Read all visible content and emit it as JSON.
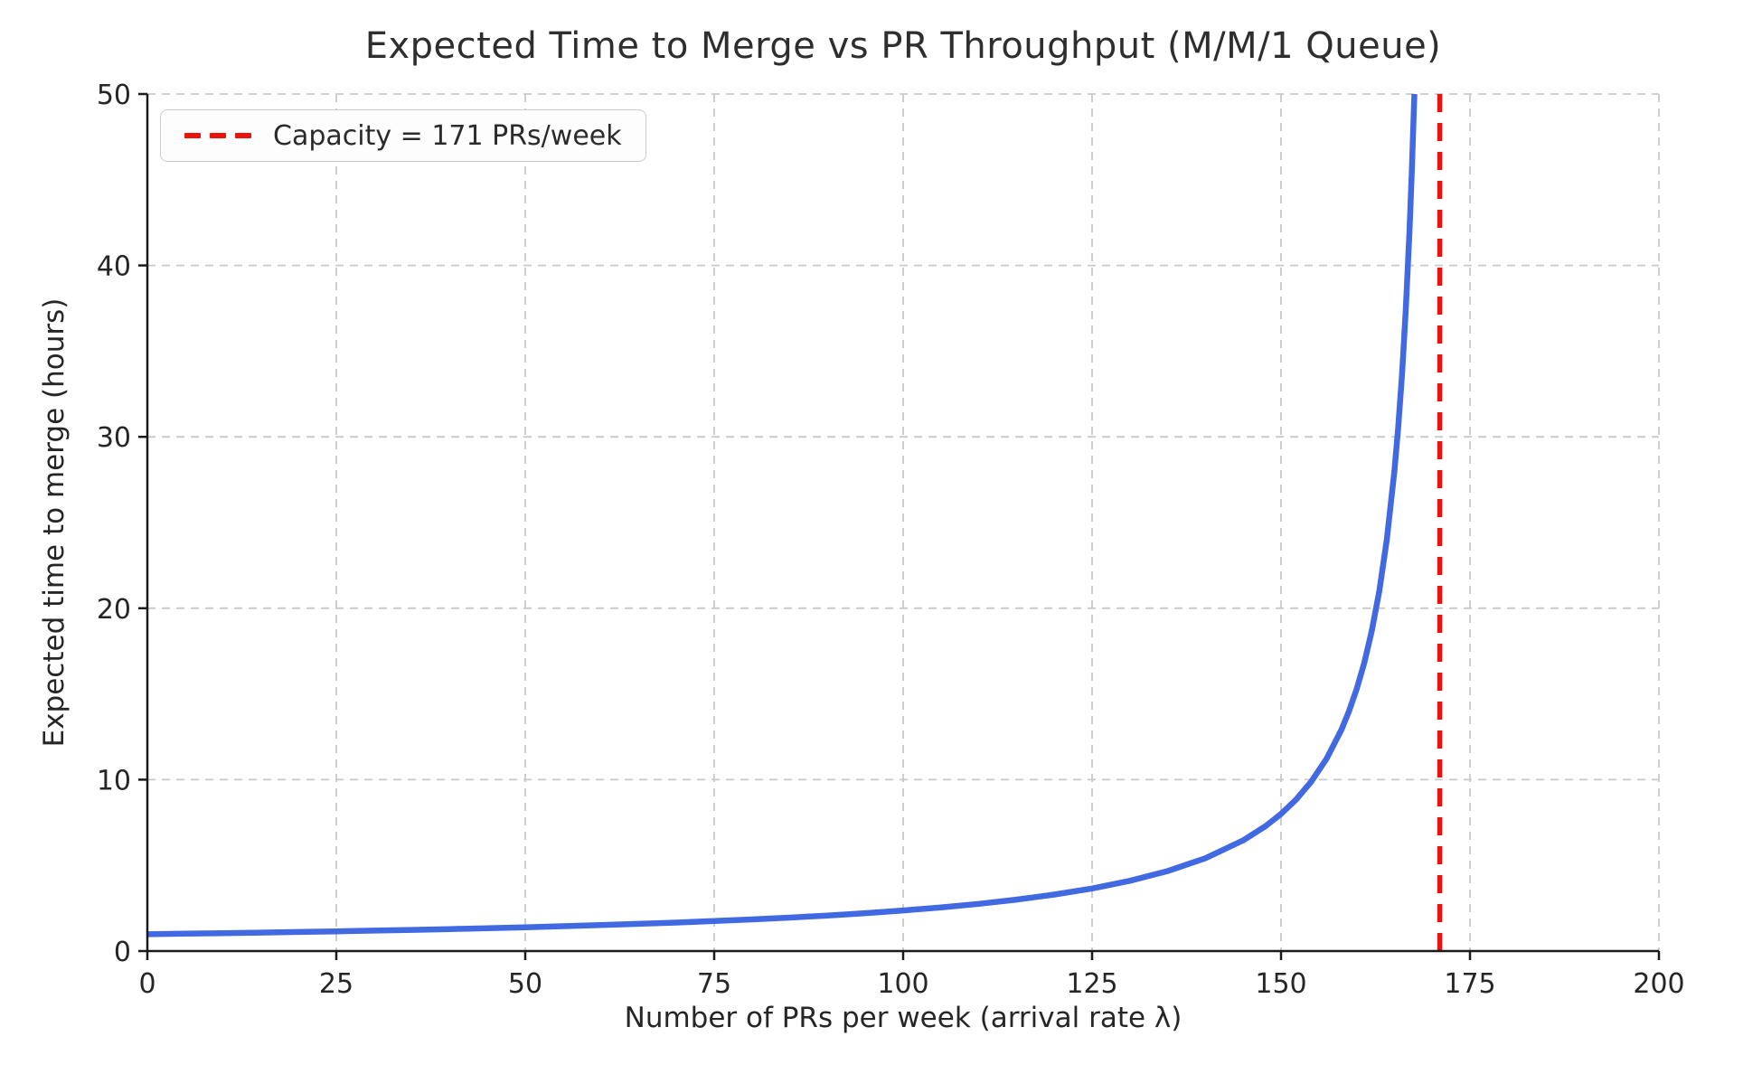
{
  "chart_data": {
    "type": "line",
    "title": "Expected Time to Merge vs PR Throughput (M/M/1 Queue)",
    "xlabel": "Number of PRs per week (arrival rate λ)",
    "ylabel": "Expected time to merge (hours)",
    "xlim": [
      0,
      200
    ],
    "ylim": [
      0,
      50
    ],
    "x_ticks": [
      0,
      25,
      50,
      75,
      100,
      125,
      150,
      175,
      200
    ],
    "y_ticks": [
      0,
      10,
      20,
      30,
      40,
      50
    ],
    "grid": true,
    "grid_style": "dashed",
    "legend": {
      "position": "upper left",
      "entries": [
        {
          "label": "Capacity = 171 PRs/week",
          "color": "#e8130d",
          "style": "dashed"
        }
      ]
    },
    "vline": {
      "x": 171,
      "color": "#e8130d",
      "style": "dashed",
      "width": 5.5
    },
    "series": [
      {
        "name": "expected-time-to-merge",
        "color": "#4169e1",
        "width": 6.5,
        "points": [
          [
            0,
            0.982
          ],
          [
            5,
            1.012
          ],
          [
            10,
            1.043
          ],
          [
            15,
            1.077
          ],
          [
            20,
            1.113
          ],
          [
            25,
            1.151
          ],
          [
            30,
            1.191
          ],
          [
            35,
            1.235
          ],
          [
            40,
            1.282
          ],
          [
            45,
            1.333
          ],
          [
            50,
            1.388
          ],
          [
            55,
            1.448
          ],
          [
            60,
            1.514
          ],
          [
            65,
            1.585
          ],
          [
            70,
            1.663
          ],
          [
            75,
            1.75
          ],
          [
            80,
            1.846
          ],
          [
            85,
            1.953
          ],
          [
            90,
            2.074
          ],
          [
            95,
            2.211
          ],
          [
            100,
            2.366
          ],
          [
            105,
            2.545
          ],
          [
            110,
            2.754
          ],
          [
            115,
            3.0
          ],
          [
            120,
            3.294
          ],
          [
            125,
            3.652
          ],
          [
            130,
            4.098
          ],
          [
            135,
            4.667
          ],
          [
            140,
            5.419
          ],
          [
            145,
            6.462
          ],
          [
            148,
            7.304
          ],
          [
            150,
            8.0
          ],
          [
            152,
            8.842
          ],
          [
            154,
            9.882
          ],
          [
            156,
            11.2
          ],
          [
            158,
            12.923
          ],
          [
            159,
            14.0
          ],
          [
            160,
            15.273
          ],
          [
            161,
            16.8
          ],
          [
            162,
            18.667
          ],
          [
            163,
            21.0
          ],
          [
            164,
            24.0
          ],
          [
            165,
            28.0
          ],
          [
            165.5,
            30.545
          ],
          [
            166,
            33.6
          ],
          [
            166.5,
            37.333
          ],
          [
            167,
            42.0
          ],
          [
            167.3,
            45.405
          ],
          [
            167.64,
            50.0
          ]
        ]
      }
    ],
    "colors": {
      "background": "#ffffff",
      "grid": "#c9c9c9",
      "spine": "#1a1a1a",
      "tick_label": "#262626"
    }
  }
}
